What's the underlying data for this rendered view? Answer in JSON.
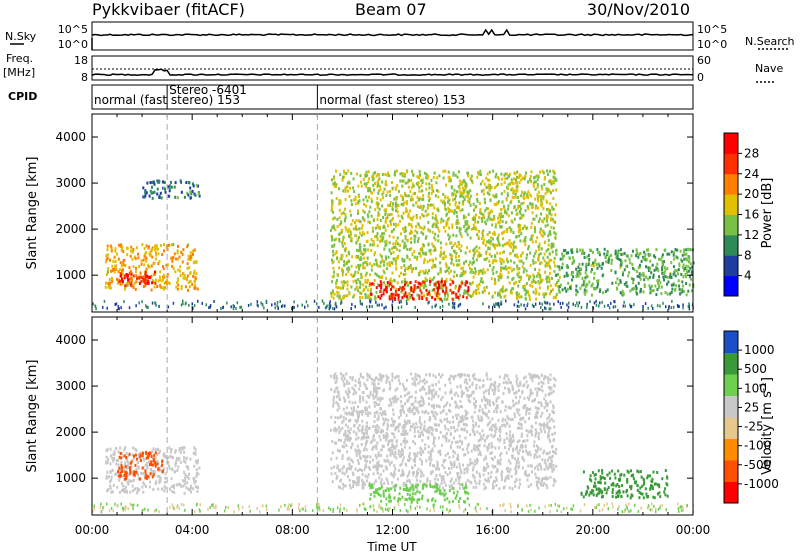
{
  "header": {
    "title": "Pykkvibaer (fitACF)",
    "beam": "Beam 07",
    "date": "30/Nov/2010"
  },
  "sky_panel": {
    "left_label": "N.Sky",
    "left_ticks": [
      "10^5",
      "10^0"
    ],
    "right_ticks": [
      "10^5",
      "10^0"
    ],
    "right_label": "N.Search"
  },
  "freq_panel": {
    "left_label_1": "Freq.",
    "left_label_2": "[MHz]",
    "left_ticks": [
      "18",
      "8"
    ],
    "right_ticks": [
      "60",
      "0"
    ],
    "right_label": "Nave"
  },
  "cpid_panel": {
    "label": "CPID",
    "segments": [
      {
        "text": "normal (fast stereo) 153",
        "start_hour": 0
      },
      {
        "text": "Stereo -6401",
        "start_hour": 3
      },
      {
        "text": "normal (fast stereo) 153",
        "start_hour": 9
      }
    ]
  },
  "time_axis": {
    "label": "Time UT",
    "tick_labels": [
      "00:00",
      "04:00",
      "08:00",
      "12:00",
      "16:00",
      "20:00",
      "00:00"
    ],
    "tick_hours": [
      0,
      4,
      8,
      12,
      16,
      20,
      24
    ],
    "range": [
      0,
      24
    ],
    "dashed_markers": [
      3,
      9
    ]
  },
  "power_panel": {
    "ylabel": "Slant Range [km]",
    "yticks": [
      "1000",
      "2000",
      "3000",
      "4000"
    ],
    "colorbar_label": "Power [dB]",
    "colorbar_ticks": [
      "4",
      "8",
      "12",
      "16",
      "20",
      "24",
      "28"
    ]
  },
  "velocity_panel": {
    "ylabel": "Slant Range [km]",
    "yticks": [
      "1000",
      "2000",
      "3000",
      "4000"
    ],
    "colorbar_label": "Velocity [m s",
    "colorbar_label_sup": "-1",
    "colorbar_label_end": "]",
    "colorbar_ticks": [
      "1000",
      "500",
      "100",
      "25",
      "-25",
      "-100",
      "-500",
      "-1000"
    ]
  },
  "chart_data": [
    {
      "type": "heatmap",
      "title": "Power",
      "xlabel": "Time UT",
      "ylabel": "Slant Range [km]",
      "xlim": [
        0,
        24
      ],
      "ylim": [
        200,
        4500
      ],
      "color_scale": "Power [dB]",
      "color_range": [
        0,
        32
      ],
      "palette": [
        "#0000ff",
        "#1f3fa0",
        "#2e8b57",
        "#77c144",
        "#e0c000",
        "#ff8000",
        "#ff3000",
        "#ff0000"
      ],
      "regions": [
        {
          "t_start": 0.5,
          "t_end": 4.2,
          "range_start": 700,
          "range_end": 1700,
          "level_db": 20
        },
        {
          "t_start": 1.0,
          "t_end": 2.5,
          "range_start": 800,
          "range_end": 1100,
          "level_db": 28
        },
        {
          "t_start": 2.0,
          "t_end": 4.3,
          "range_start": 2700,
          "range_end": 3100,
          "level_db": 8
        },
        {
          "t_start": 9.5,
          "t_end": 18.5,
          "range_start": 500,
          "range_end": 3300,
          "level_db": 16
        },
        {
          "t_start": 11.0,
          "t_end": 15.0,
          "range_start": 500,
          "range_end": 900,
          "level_db": 30
        },
        {
          "t_start": 18.5,
          "t_end": 24.0,
          "range_start": 600,
          "range_end": 1600,
          "level_db": 12
        }
      ]
    },
    {
      "type": "heatmap",
      "title": "Velocity",
      "xlabel": "Time UT",
      "ylabel": "Slant Range [km]",
      "xlim": [
        0,
        24
      ],
      "ylim": [
        200,
        4500
      ],
      "color_scale": "Velocity [m s-1]",
      "color_range": [
        -1000,
        1000
      ],
      "palette": [
        "#ff0000",
        "#ff5000",
        "#ff8c00",
        "#e6c88c",
        "#c8c8c8",
        "#6fcf50",
        "#3a9a3a",
        "#1a4fc8"
      ],
      "regions": [
        {
          "t_start": 0.5,
          "t_end": 4.3,
          "range_start": 700,
          "range_end": 1700,
          "level_ms": 0
        },
        {
          "t_start": 1.0,
          "t_end": 2.8,
          "range_start": 1000,
          "range_end": 1600,
          "level_ms": -500
        },
        {
          "t_start": 9.5,
          "t_end": 18.5,
          "range_start": 800,
          "range_end": 3300,
          "level_ms": 0
        },
        {
          "t_start": 11.0,
          "t_end": 15.0,
          "range_start": 500,
          "range_end": 900,
          "level_ms": 100
        },
        {
          "t_start": 19.5,
          "t_end": 23.0,
          "range_start": 600,
          "range_end": 1200,
          "level_ms": 500
        }
      ]
    }
  ]
}
